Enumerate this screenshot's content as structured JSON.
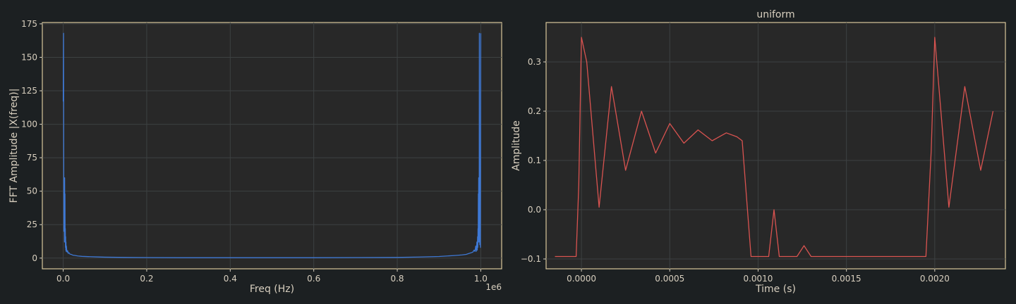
{
  "colors": {
    "background": "#1c2022",
    "plot_bg": "#282828",
    "frame": "#d9c79b",
    "text": "#d8cfbf",
    "grid": "#3d4142"
  },
  "chart_data": [
    {
      "type": "line",
      "title": "",
      "xlabel": "Freq (Hz)",
      "ylabel": "FFT Amplitude |X(freq)|",
      "offset_label": "1e6",
      "xlim": [
        -0.05,
        1.05
      ],
      "ylim": [
        -8,
        176
      ],
      "xticks": [
        0.0,
        0.2,
        0.4,
        0.6,
        0.8,
        1.0
      ],
      "xtick_labels": [
        "0.0",
        "0.2",
        "0.4",
        "0.6",
        "0.8",
        "1.0"
      ],
      "yticks": [
        0,
        25,
        50,
        75,
        100,
        125,
        150,
        175
      ],
      "ytick_labels": [
        "0",
        "25",
        "50",
        "75",
        "100",
        "125",
        "150",
        "175"
      ],
      "grid": true,
      "series": [
        {
          "color": "#3e78d4",
          "x": [
            0,
            0.0008,
            0.0016,
            0.0024,
            0.003,
            0.0034,
            0.0038,
            0.0042,
            0.0046,
            0.005,
            0.0054,
            0.0058,
            0.0062,
            0.0066,
            0.007,
            0.0076,
            0.0084,
            0.0094,
            0.0106,
            0.012,
            0.014,
            0.016,
            0.019,
            0.023,
            0.028,
            0.035,
            0.045,
            0.06,
            0.08,
            0.1,
            0.15,
            0.2,
            0.3,
            0.4,
            0.5,
            0.6,
            0.7,
            0.8,
            0.85,
            0.9,
            0.92,
            0.94,
            0.955,
            0.965,
            0.972,
            0.977,
            0.981,
            0.984,
            0.986,
            0.988,
            0.9894,
            0.9906,
            0.9916,
            0.9924,
            0.993,
            0.9934,
            0.9938,
            0.9942,
            0.9946,
            0.995,
            0.9954,
            0.9958,
            0.9962,
            0.9966,
            0.997,
            0.9976,
            0.9984,
            0.9992,
            1.0
          ],
          "y": [
            117,
            168,
            20,
            45,
            12,
            60,
            30,
            48,
            14,
            22,
            8,
            16,
            6,
            12,
            5,
            9,
            6,
            4.5,
            5.5,
            3.5,
            4,
            3,
            2.8,
            2.2,
            2,
            1.6,
            1.3,
            1.1,
            0.9,
            0.7,
            0.5,
            0.4,
            0.3,
            0.3,
            0.3,
            0.3,
            0.4,
            0.5,
            0.8,
            1.2,
            1.6,
            2.0,
            2.4,
            2.8,
            3.5,
            4,
            4.5,
            6,
            5,
            9,
            5,
            12,
            6,
            16,
            8,
            22,
            14,
            48,
            30,
            60,
            12,
            45,
            20,
            168,
            117,
            10,
            25,
            8,
            168
          ]
        }
      ]
    },
    {
      "type": "line",
      "title": "uniform",
      "xlabel": "Time (s)",
      "ylabel": "Amplitude",
      "xlim": [
        -0.0002,
        0.0024
      ],
      "ylim": [
        -0.12,
        0.38
      ],
      "xticks": [
        0.0,
        0.0005,
        0.001,
        0.0015,
        0.002
      ],
      "xtick_labels": [
        "0.0000",
        "0.0005",
        "0.0010",
        "0.0015",
        "0.0020"
      ],
      "yticks": [
        -0.1,
        0.0,
        0.1,
        0.2,
        0.3
      ],
      "ytick_labels": [
        "−0.1",
        "0.0",
        "0.1",
        "0.2",
        "0.3"
      ],
      "grid": true,
      "series": [
        {
          "color": "#d95350",
          "x": [
            -0.00015,
            -3e-05,
            -1.5e-05,
            0.0,
            3e-05,
            0.0001,
            0.00017,
            0.00025,
            0.00034,
            0.00042,
            0.0005,
            0.00058,
            0.00066,
            0.00074,
            0.00082,
            0.00088,
            0.00091,
            0.00096,
            0.00101,
            0.00106,
            0.00109,
            0.00112,
            0.00117,
            0.00122,
            0.00126,
            0.0013,
            0.00195,
            0.00198,
            0.002,
            0.00208,
            0.00217,
            0.00226,
            0.00233
          ],
          "y": [
            -0.095,
            -0.095,
            0.05,
            0.35,
            0.3,
            0.005,
            0.25,
            0.08,
            0.2,
            0.115,
            0.175,
            0.135,
            0.162,
            0.14,
            0.156,
            0.148,
            0.14,
            -0.095,
            -0.095,
            -0.095,
            0.0,
            -0.095,
            -0.095,
            -0.095,
            -0.073,
            -0.095,
            -0.095,
            0.12,
            0.35,
            0.005,
            0.25,
            0.08,
            0.2
          ]
        }
      ]
    }
  ]
}
